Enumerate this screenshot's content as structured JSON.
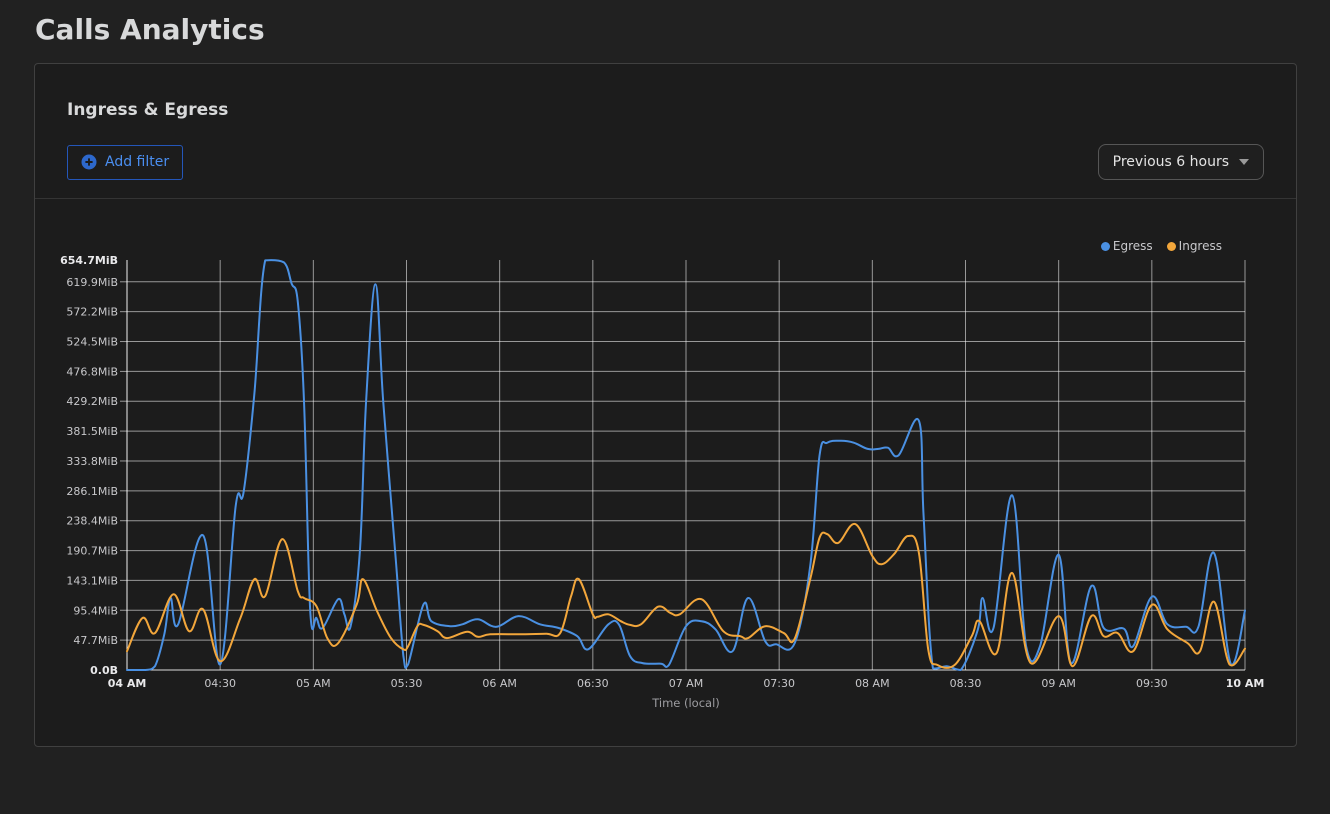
{
  "page": {
    "title": "Calls Analytics"
  },
  "panel": {
    "title": "Ingress & Egress",
    "add_filter_label": "Add filter",
    "time_range_label": "Previous 6 hours"
  },
  "theme": {
    "accent_blue": "#4a8ef0",
    "add_filter_border": "#2456b9",
    "egress_color": "#4a90e2",
    "ingress_color": "#f2a63b",
    "panel_background": "#1c1c1c",
    "page_background": "#212121"
  },
  "chart_data": {
    "type": "line",
    "title": "Ingress & Egress",
    "xlabel": "Time (local)",
    "ylabel": "",
    "y_unit": "MiB",
    "ylim": [
      0,
      654.7
    ],
    "x_range_minutes": [
      0,
      360
    ],
    "x_start_label": "04 AM",
    "x_end_label": "10 AM",
    "grid": true,
    "legend_position": "top-right",
    "x_ticks": [
      {
        "min": 0,
        "label": "04 AM",
        "bold": true
      },
      {
        "min": 30,
        "label": "04:30"
      },
      {
        "min": 60,
        "label": "05 AM"
      },
      {
        "min": 90,
        "label": "05:30"
      },
      {
        "min": 120,
        "label": "06 AM"
      },
      {
        "min": 150,
        "label": "06:30"
      },
      {
        "min": 180,
        "label": "07 AM"
      },
      {
        "min": 210,
        "label": "07:30"
      },
      {
        "min": 240,
        "label": "08 AM"
      },
      {
        "min": 270,
        "label": "08:30"
      },
      {
        "min": 300,
        "label": "09 AM"
      },
      {
        "min": 330,
        "label": "09:30"
      },
      {
        "min": 360,
        "label": "10 AM",
        "bold": true
      }
    ],
    "y_ticks": [
      {
        "value": 654.7,
        "label": "654.7MiB",
        "bold": true,
        "gridline": false
      },
      {
        "value": 619.9,
        "label": "619.9MiB"
      },
      {
        "value": 572.2,
        "label": "572.2MiB"
      },
      {
        "value": 524.5,
        "label": "524.5MiB"
      },
      {
        "value": 476.8,
        "label": "476.8MiB"
      },
      {
        "value": 429.2,
        "label": "429.2MiB"
      },
      {
        "value": 381.5,
        "label": "381.5MiB"
      },
      {
        "value": 333.8,
        "label": "333.8MiB"
      },
      {
        "value": 286.1,
        "label": "286.1MiB"
      },
      {
        "value": 238.4,
        "label": "238.4MiB"
      },
      {
        "value": 190.7,
        "label": "190.7MiB"
      },
      {
        "value": 143.1,
        "label": "143.1MiB"
      },
      {
        "value": 95.4,
        "label": "95.4MiB"
      },
      {
        "value": 47.7,
        "label": "47.7MiB"
      },
      {
        "value": 0,
        "label": "0.0B",
        "bold": true,
        "gridline": false
      }
    ],
    "series": [
      {
        "name": "Egress",
        "color": "#4a90e2",
        "points_unit": "[minutes_after_04AM, MiB]",
        "points": [
          [
            0,
            0
          ],
          [
            6,
            0
          ],
          [
            9,
            6
          ],
          [
            12,
            57
          ],
          [
            14,
            115
          ],
          [
            16.5,
            73
          ],
          [
            24.5,
            215
          ],
          [
            30,
            9
          ],
          [
            35,
            262
          ],
          [
            37.5,
            283
          ],
          [
            41,
            440
          ],
          [
            44.5,
            654
          ],
          [
            50.5,
            651
          ],
          [
            53,
            617
          ],
          [
            55,
            588
          ],
          [
            57,
            429
          ],
          [
            59,
            95
          ],
          [
            61,
            83
          ],
          [
            63,
            67
          ],
          [
            68,
            113
          ],
          [
            70,
            89
          ],
          [
            72,
            70
          ],
          [
            75,
            190
          ],
          [
            77,
            429
          ],
          [
            80,
            616
          ],
          [
            82.5,
            429
          ],
          [
            86.5,
            180
          ],
          [
            89,
            22
          ],
          [
            90.5,
            9
          ],
          [
            95.5,
            105
          ],
          [
            98,
            78
          ],
          [
            104,
            70
          ],
          [
            108,
            73
          ],
          [
            113,
            81
          ],
          [
            119,
            69
          ],
          [
            126,
            86
          ],
          [
            133,
            73
          ],
          [
            139,
            67
          ],
          [
            145,
            54
          ],
          [
            148.5,
            33
          ],
          [
            155,
            73
          ],
          [
            158.5,
            72
          ],
          [
            162,
            22
          ],
          [
            166,
            11
          ],
          [
            172,
            10
          ],
          [
            174.5,
            8
          ],
          [
            180,
            70
          ],
          [
            185,
            78
          ],
          [
            189.5,
            65
          ],
          [
            195,
            30
          ],
          [
            200,
            115
          ],
          [
            205.5,
            46
          ],
          [
            209,
            41
          ],
          [
            215,
            43
          ],
          [
            220,
            166
          ],
          [
            223,
            342
          ],
          [
            225.5,
            363
          ],
          [
            230,
            366
          ],
          [
            234,
            363
          ],
          [
            238.5,
            353
          ],
          [
            242,
            353
          ],
          [
            245,
            355
          ],
          [
            248.5,
            343
          ],
          [
            255,
            398
          ],
          [
            256.5,
            246
          ],
          [
            259.5,
            3
          ],
          [
            264,
            6
          ],
          [
            268.5,
            0
          ],
          [
            274,
            65
          ],
          [
            275.5,
            115
          ],
          [
            279,
            67
          ],
          [
            285,
            279
          ],
          [
            289.5,
            38
          ],
          [
            294,
            38
          ],
          [
            300,
            184
          ],
          [
            304,
            11
          ],
          [
            310.5,
            134
          ],
          [
            314.5,
            67
          ],
          [
            321,
            66
          ],
          [
            324,
            38
          ],
          [
            330,
            117
          ],
          [
            335,
            73
          ],
          [
            341,
            69
          ],
          [
            345,
            69
          ],
          [
            350,
            187
          ],
          [
            355.5,
            9
          ],
          [
            360,
            95
          ]
        ]
      },
      {
        "name": "Ingress",
        "color": "#f2a63b",
        "points_unit": "[minutes_after_04AM, MiB]",
        "points": [
          [
            0,
            30
          ],
          [
            5,
            83
          ],
          [
            9,
            59
          ],
          [
            15,
            121
          ],
          [
            20,
            62
          ],
          [
            24.5,
            97
          ],
          [
            30,
            14
          ],
          [
            36.5,
            83
          ],
          [
            41,
            145
          ],
          [
            44.5,
            118
          ],
          [
            50,
            209
          ],
          [
            55,
            126
          ],
          [
            57,
            115
          ],
          [
            61,
            102
          ],
          [
            64.5,
            51
          ],
          [
            68,
            43
          ],
          [
            74,
            105
          ],
          [
            76,
            145
          ],
          [
            80.5,
            94
          ],
          [
            85,
            51
          ],
          [
            89,
            33
          ],
          [
            90.5,
            38
          ],
          [
            93.5,
            70
          ],
          [
            95.5,
            72
          ],
          [
            100,
            62
          ],
          [
            103,
            51
          ],
          [
            109.5,
            61
          ],
          [
            113,
            53
          ],
          [
            117,
            57
          ],
          [
            127,
            57
          ],
          [
            135,
            58
          ],
          [
            139.5,
            59
          ],
          [
            143,
            118
          ],
          [
            145.5,
            145
          ],
          [
            150,
            89
          ],
          [
            151.5,
            85
          ],
          [
            155,
            89
          ],
          [
            159,
            78
          ],
          [
            162,
            72
          ],
          [
            165.5,
            73
          ],
          [
            171,
            101
          ],
          [
            175,
            91
          ],
          [
            178,
            89
          ],
          [
            185,
            113
          ],
          [
            192,
            62
          ],
          [
            197.5,
            54
          ],
          [
            200,
            51
          ],
          [
            205.5,
            70
          ],
          [
            211.5,
            59
          ],
          [
            215,
            50
          ],
          [
            220,
            145
          ],
          [
            223,
            211
          ],
          [
            225.5,
            217
          ],
          [
            229,
            203
          ],
          [
            234.5,
            233
          ],
          [
            240,
            182
          ],
          [
            243,
            169
          ],
          [
            247,
            185
          ],
          [
            251.5,
            214
          ],
          [
            255,
            187
          ],
          [
            258,
            33
          ],
          [
            261,
            8
          ],
          [
            266.5,
            8
          ],
          [
            272,
            54
          ],
          [
            274.5,
            78
          ],
          [
            280,
            27
          ],
          [
            285,
            155
          ],
          [
            291,
            11
          ],
          [
            300,
            86
          ],
          [
            304.5,
            6
          ],
          [
            310.5,
            86
          ],
          [
            314.5,
            54
          ],
          [
            319,
            59
          ],
          [
            324,
            30
          ],
          [
            330,
            104
          ],
          [
            335,
            65
          ],
          [
            341.5,
            43
          ],
          [
            345.5,
            30
          ],
          [
            350,
            109
          ],
          [
            355,
            9
          ],
          [
            360,
            34
          ]
        ]
      }
    ]
  }
}
